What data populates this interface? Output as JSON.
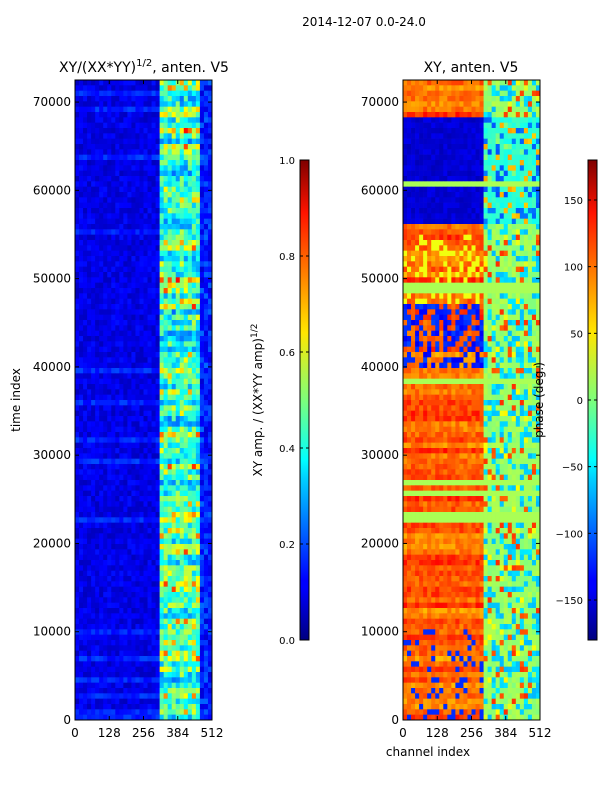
{
  "figure": {
    "suptitle": "2014-12-07 0.0-24.0"
  },
  "chart_data": [
    {
      "type": "heatmap",
      "title": "XY/(XX*YY)^{1/2}, anten. V5",
      "title_main": "XY/(XX*YY)",
      "title_exp": "1/2",
      "title_tail": ", anten. V5",
      "xlabel": "",
      "ylabel": "time index",
      "xlim": [
        0,
        512
      ],
      "ylim": [
        0,
        72500
      ],
      "xticks": [
        0,
        128,
        256,
        384,
        512
      ],
      "yticks": [
        0,
        10000,
        20000,
        30000,
        40000,
        50000,
        60000,
        70000
      ],
      "colormap": "jet",
      "colorbar": {
        "label": "XY amp. / (XX*YY amp)^{1/2}",
        "label_main": "XY amp. / (XX*YY amp)",
        "label_exp": "1/2",
        "range": [
          0.0,
          1.0
        ],
        "ticks": [
          0.0,
          0.2,
          0.4,
          0.6,
          0.8,
          1.0
        ],
        "tick_labels": [
          "0.0",
          "0.2",
          "0.4",
          "0.6",
          "0.8",
          "1.0"
        ]
      },
      "structure": "low amplitude (~0.05-0.15) across channels 0-320; higher amplitude (~0.3-0.7) with horizontal striping in channels ~320-470"
    },
    {
      "type": "heatmap",
      "title": "XY, anten. V5",
      "xlabel": "channel index",
      "ylabel": "",
      "xlim": [
        0,
        512
      ],
      "ylim": [
        0,
        72500
      ],
      "xticks": [
        0,
        128,
        256,
        384,
        512
      ],
      "yticks": [
        0,
        10000,
        20000,
        30000,
        40000,
        50000,
        60000,
        70000
      ],
      "colormap": "jet",
      "colorbar": {
        "label": "phase (deg.)",
        "range": [
          -180,
          180
        ],
        "ticks": [
          -150,
          -100,
          -50,
          0,
          50,
          100,
          150
        ],
        "tick_labels": [
          "−150",
          "−100",
          "−50",
          "0",
          "50",
          "100",
          "150"
        ]
      },
      "structure": "phase ~+80 to +150 deg across channels 0-300 with blocks near -150 around time 56000-68000 and 40000-47000; channels 300-512 mostly -50 to +50 deg"
    }
  ]
}
